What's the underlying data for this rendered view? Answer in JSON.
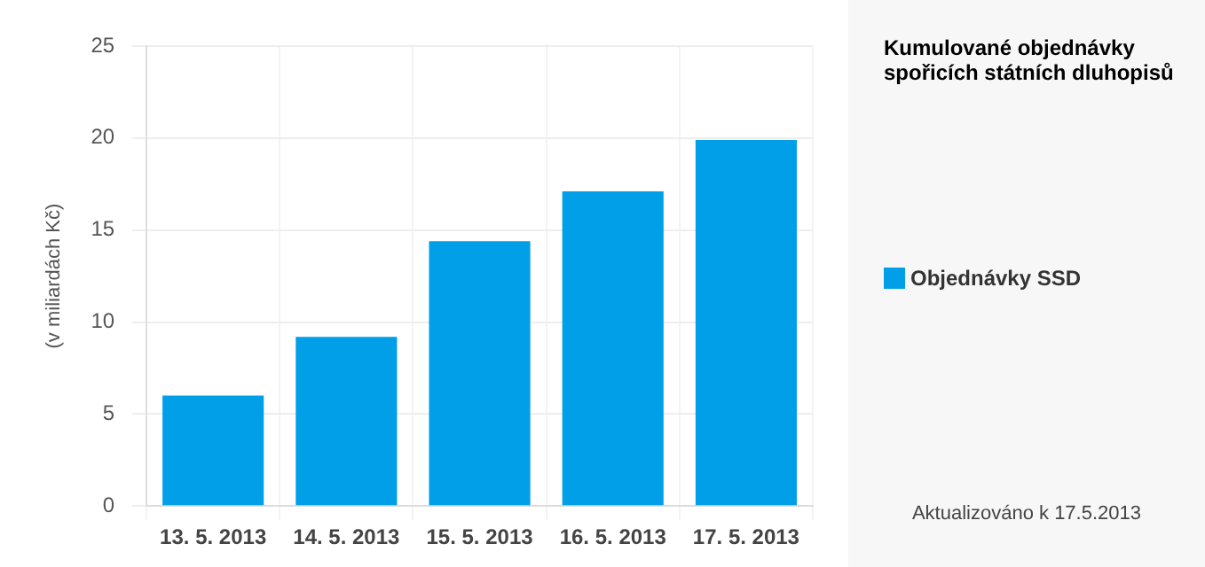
{
  "chart_data": {
    "type": "bar",
    "title": "Kumulované objednávky spořicích státních dluhopisů",
    "ylabel": "(v miliardách Kč)",
    "categories": [
      "13. 5. 2013",
      "14. 5. 2013",
      "15. 5. 2013",
      "16. 5. 2013",
      "17. 5. 2013"
    ],
    "series": [
      {
        "name": "Objednávky SSD",
        "color": "#009fe8",
        "values": [
          6.0,
          9.2,
          14.4,
          17.1,
          19.9
        ]
      }
    ],
    "ylim": [
      0,
      25
    ],
    "yticks": [
      0,
      5,
      10,
      15,
      20,
      25
    ],
    "grid": true,
    "legend": "right",
    "annotations": [
      "Aktualizováno k 17.5.2013"
    ]
  }
}
